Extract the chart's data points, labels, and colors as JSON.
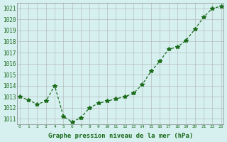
{
  "hours": [
    0,
    1,
    2,
    3,
    4,
    5,
    6,
    7,
    8,
    9,
    10,
    11,
    12,
    13,
    14,
    15,
    16,
    17,
    18,
    19,
    20,
    21,
    22,
    23
  ],
  "pressure": [
    1013.0,
    1012.7,
    1012.3,
    1012.6,
    1014.0,
    1011.2,
    1010.7,
    1011.1,
    1012.0,
    1012.4,
    1012.6,
    1012.8,
    1013.0,
    1013.3,
    1014.1,
    1015.3,
    1016.2,
    1017.3,
    1017.5,
    1018.1,
    1019.1,
    1020.2,
    1021.0,
    1021.2
  ],
  "line_color": "#1a6b1a",
  "marker": "*",
  "marker_color": "#1a6b1a",
  "background_color": "#d6f0f0",
  "grid_color": "#aaaaaa",
  "xlabel": "Graphe pression niveau de la mer (hPa)",
  "xlabel_color": "#1a6b1a",
  "tick_color": "#1a6b1a",
  "ylim_min": 1010.5,
  "ylim_max": 1021.5,
  "ytick_step": 1,
  "xlim_min": -0.3,
  "xlim_max": 23.3
}
